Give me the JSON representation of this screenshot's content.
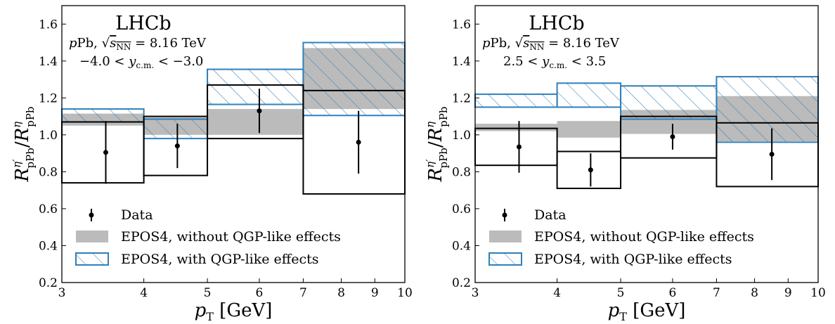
{
  "colors": {
    "data": "#000000",
    "no_qgp_fill": "#bbbbbb",
    "qgp_edge": "#2f7fba",
    "background": "#ffffff"
  },
  "chart_data": [
    {
      "type": "bar",
      "title": "LHCb",
      "annotations": [
        "pPb, √sNN = 8.16 TeV",
        "−4.0 < yc.m. < −3.0"
      ],
      "xlabel": "pT [GeV]",
      "ylabel": "R^η′_pPb / R^η_pPb",
      "xscale": "log",
      "xlim": [
        3,
        10
      ],
      "ylim": [
        0.2,
        1.7
      ],
      "xticks": [
        3,
        4,
        5,
        6,
        7,
        8,
        9,
        10
      ],
      "yticks": [
        0.2,
        0.4,
        0.6,
        0.8,
        1.0,
        1.2,
        1.4,
        1.6
      ],
      "grid": false,
      "legend_position": "lower-left",
      "legend": [
        "Data",
        "EPOS4, without QGP-like effects",
        "EPOS4, with QGP-like effects"
      ],
      "bins": [
        [
          3,
          4
        ],
        [
          4,
          5
        ],
        [
          5,
          7
        ],
        [
          7,
          10
        ]
      ],
      "data": {
        "x": [
          3.5,
          4.5,
          6,
          8.5
        ],
        "y": [
          0.905,
          0.94,
          1.13,
          0.96
        ],
        "yerr_low": [
          0.17,
          0.12,
          0.12,
          0.17
        ],
        "yerr_high": [
          0.17,
          0.12,
          0.12,
          0.17
        ],
        "syst_low": [
          0.74,
          0.78,
          0.98,
          0.68
        ],
        "syst_high": [
          1.07,
          1.1,
          1.27,
          1.24
        ]
      },
      "epos4_without_qgp": {
        "low": [
          1.05,
          1.0,
          1.0,
          1.14
        ],
        "high": [
          1.115,
          1.095,
          1.14,
          1.47
        ]
      },
      "epos4_with_qgp": {
        "low": [
          1.07,
          0.98,
          1.165,
          1.105
        ],
        "high": [
          1.14,
          1.085,
          1.355,
          1.5
        ]
      }
    },
    {
      "type": "bar",
      "title": "LHCb",
      "annotations": [
        "pPb, √sNN = 8.16 TeV",
        "2.5 < yc.m. < 3.5"
      ],
      "xlabel": "pT [GeV]",
      "ylabel": "R^η′_pPb / R^η_pPb",
      "xscale": "log",
      "xlim": [
        3,
        10
      ],
      "ylim": [
        0.2,
        1.7
      ],
      "xticks": [
        3,
        4,
        5,
        6,
        7,
        8,
        9,
        10
      ],
      "yticks": [
        0.2,
        0.4,
        0.6,
        0.8,
        1.0,
        1.2,
        1.4,
        1.6
      ],
      "grid": false,
      "legend_position": "lower-left",
      "legend": [
        "Data",
        "EPOS4, without QGP-like effects",
        "EPOS4, with QGP-like effects"
      ],
      "bins": [
        [
          3,
          4
        ],
        [
          4,
          5
        ],
        [
          5,
          7
        ],
        [
          7,
          10
        ]
      ],
      "data": {
        "x": [
          3.5,
          4.5,
          6,
          8.5
        ],
        "y": [
          0.935,
          0.81,
          0.99,
          0.895
        ],
        "yerr_low": [
          0.14,
          0.09,
          0.07,
          0.14
        ],
        "yerr_high": [
          0.14,
          0.09,
          0.07,
          0.14
        ],
        "syst_low": [
          0.835,
          0.71,
          0.875,
          0.72
        ],
        "syst_high": [
          1.035,
          0.91,
          1.1,
          1.065
        ]
      },
      "epos4_without_qgp": {
        "low": [
          1.02,
          0.985,
          1.005,
          0.965
        ],
        "high": [
          1.06,
          1.075,
          1.135,
          1.21
        ]
      },
      "epos4_with_qgp": {
        "low": [
          1.15,
          1.15,
          1.085,
          0.96
        ],
        "high": [
          1.22,
          1.28,
          1.265,
          1.315
        ]
      }
    }
  ],
  "labels": {
    "lhcb": "LHCb",
    "collision_prefix": "p",
    "collision_species": "Pb, ",
    "sqrt_sym": "√",
    "sqrt_arg": "s",
    "sqrt_sub": "NN",
    "energy": " = 8.16 TeV",
    "y_symbol": "y",
    "y_sub": "c.m.",
    "range_left": [
      "−4.0 < ",
      "2.5 < "
    ],
    "range_right": [
      " < −3.0",
      " < 3.5"
    ],
    "xlabel_p": "p",
    "xlabel_sub": "T",
    "xlabel_unit": " [GeV]",
    "ylabel_R": "R",
    "ylabel_sup_num": "η′",
    "ylabel_sub": "pPb",
    "ylabel_slash": "/",
    "ylabel_sup_den": "η",
    "legend_data": "Data",
    "legend_no_qgp": "EPOS4, without QGP-like effects",
    "legend_qgp": "EPOS4, with QGP-like effects",
    "ytick_labels": [
      "0.2",
      "0.4",
      "0.6",
      "0.8",
      "1.0",
      "1.2",
      "1.4",
      "1.6"
    ],
    "xtick_labels": [
      "3",
      "4",
      "5",
      "6",
      "7",
      "8",
      "9",
      "10"
    ]
  }
}
